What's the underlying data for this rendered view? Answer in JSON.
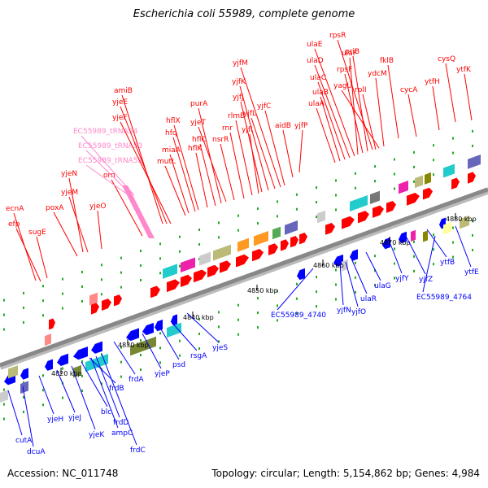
{
  "title": "Escherichia coli 55989, complete genome",
  "footer": {
    "accession": "Accession: NC_011748",
    "summary": "Topology: circular; Length: 5,154,862 bp; Genes: 4,984"
  },
  "colors": {
    "forward_strand": "#ff0000",
    "reverse_strand": "#0000ff",
    "trna": "#ff88cc",
    "backbone": "#888888"
  },
  "scale_labels": [
    "4820 kbp",
    "4830 kbp",
    "4840 kbp",
    "4850 kbp",
    "4860 kbp",
    "4870 kbp",
    "4880 kbp"
  ],
  "genes_top": [
    "ecnA",
    "efp",
    "sugE",
    "poxA",
    "yjeN",
    "yjeM",
    "yjeO",
    "orn",
    "EC55989_tRNA52",
    "EC55989_tRNA53",
    "EC55989_tRNA54",
    "amiB",
    "yjeE",
    "yjeF",
    "mutL",
    "miaA",
    "hfq",
    "hflX",
    "hflK",
    "hflC",
    "purA",
    "yjeT",
    "nsrR",
    "rnr",
    "rlmB",
    "yjfI",
    "yjfJ",
    "yjfK",
    "yjfL",
    "yjfM",
    "yjfC",
    "aidB",
    "yjfP",
    "ulaA",
    "ulaB",
    "ulaC",
    "ulaD",
    "ulaE",
    "ulaF",
    "rpsF",
    "priB",
    "rpsR",
    "rplI",
    "yagU",
    "ydcM",
    "fklB",
    "cycA",
    "ytfH",
    "cysQ",
    "ytfK"
  ],
  "genes_bottom": [
    "cutA",
    "dcuA",
    "yjeH",
    "yjeJ",
    "yjeK",
    "blc",
    "ampC",
    "frdD",
    "frdC",
    "frdB",
    "frdA",
    "yjeP",
    "psd",
    "rsgA",
    "yjeS",
    "EC55989_4740",
    "yjfN",
    "yjfO",
    "ulaR",
    "ulaG",
    "yjfY",
    "yjfZ",
    "EC55989_4764",
    "ytfB",
    "ytfE"
  ]
}
